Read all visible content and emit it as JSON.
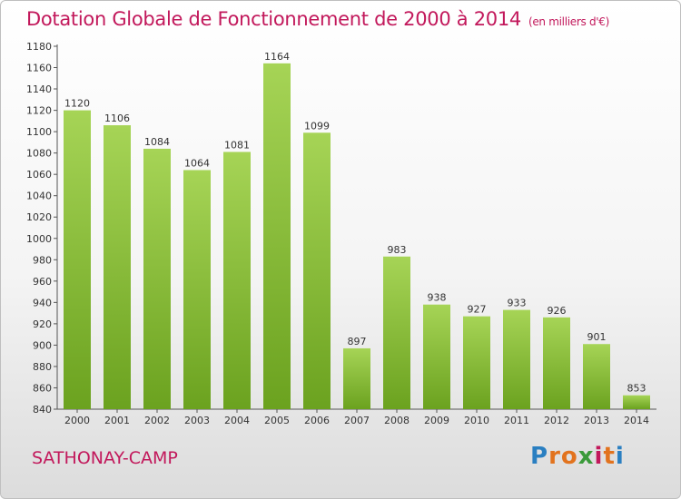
{
  "header": {
    "title": "Dotation Globale de Fonctionnement de 2000 à 2014",
    "subtitle": "(en milliers d'€)"
  },
  "footer": {
    "commune": "SATHONAY-CAMP",
    "logo_letters": [
      "P",
      "r",
      "o",
      "x",
      "i",
      "t",
      "i"
    ],
    "logo_colors": [
      "#2a7fc1",
      "#e2731e",
      "#e2731e",
      "#3a9a3a",
      "#c2185b",
      "#e2731e",
      "#2a7fc1"
    ]
  },
  "colors": {
    "bar_top": "#a6d456",
    "bar_bottom": "#6ba21f",
    "title": "#c2185b"
  },
  "chart_data": {
    "type": "bar",
    "categories": [
      "2000",
      "2001",
      "2002",
      "2003",
      "2004",
      "2005",
      "2006",
      "2007",
      "2008",
      "2009",
      "2010",
      "2011",
      "2012",
      "2013",
      "2014"
    ],
    "values": [
      1120,
      1106,
      1084,
      1064,
      1081,
      1164,
      1099,
      897,
      983,
      938,
      927,
      933,
      926,
      901,
      853
    ],
    "ylim": [
      840,
      1180
    ],
    "yticks": [
      840,
      860,
      880,
      900,
      920,
      940,
      960,
      980,
      1000,
      1020,
      1040,
      1060,
      1080,
      1100,
      1120,
      1140,
      1160,
      1180
    ],
    "grid": false
  }
}
